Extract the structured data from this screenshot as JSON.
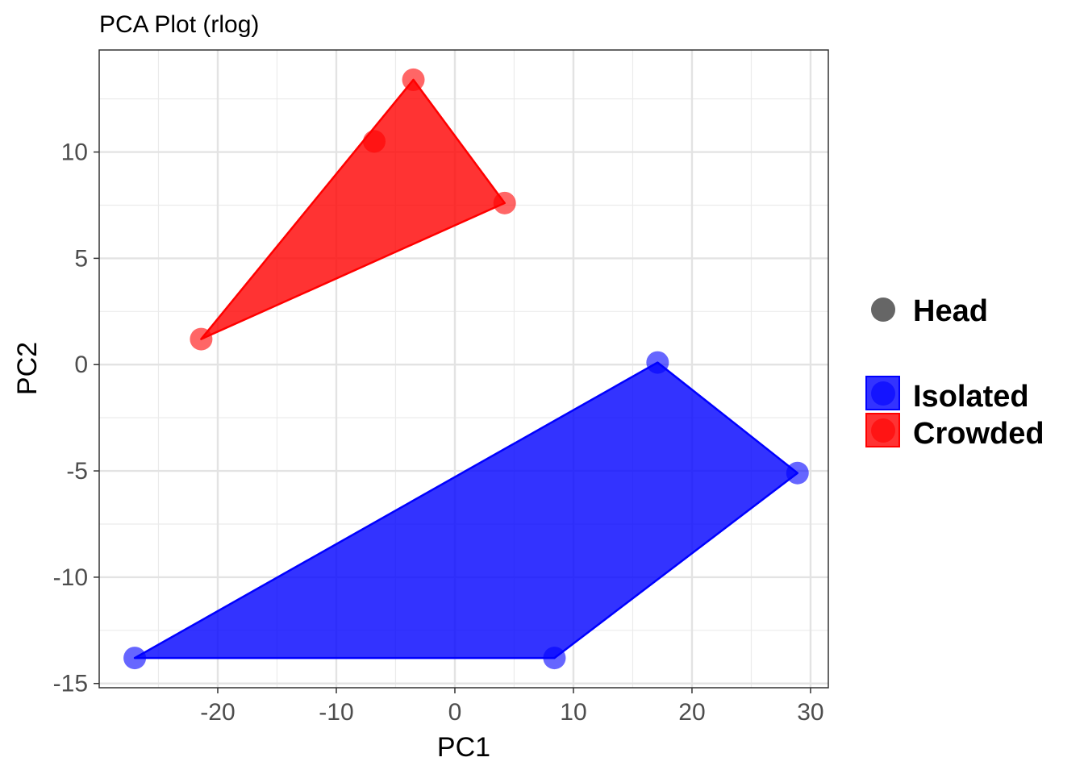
{
  "chart_data": {
    "type": "scatter",
    "title": "PCA Plot (rlog)",
    "xlabel": "PC1",
    "ylabel": "PC2",
    "xlim": [
      -30,
      31.5
    ],
    "ylim": [
      -15.2,
      14.8
    ],
    "x_ticks": [
      -20,
      -10,
      0,
      10,
      20,
      30
    ],
    "y_ticks": [
      -15,
      -10,
      -5,
      0,
      5,
      10
    ],
    "x_tick_labels": [
      "-20",
      "-10",
      "0",
      "10",
      "20",
      "30"
    ],
    "y_tick_labels": [
      "-15",
      "-10",
      "-5",
      "0",
      "5",
      "10"
    ],
    "grid": true,
    "legend_position": "right",
    "shape_legend": {
      "label": "Head",
      "color": "#666666"
    },
    "series": [
      {
        "name": "Isolated",
        "color": "#0000ff",
        "hull": true,
        "points": [
          {
            "x": -27.0,
            "y": -13.8
          },
          {
            "x": 8.4,
            "y": -13.8
          },
          {
            "x": 17.1,
            "y": 0.1
          },
          {
            "x": 28.9,
            "y": -5.1
          }
        ]
      },
      {
        "name": "Crowded",
        "color": "#ff0000",
        "hull": true,
        "points": [
          {
            "x": -21.4,
            "y": 1.2
          },
          {
            "x": -6.8,
            "y": 10.5
          },
          {
            "x": -3.5,
            "y": 13.4
          },
          {
            "x": 4.2,
            "y": 7.6
          }
        ]
      }
    ]
  }
}
